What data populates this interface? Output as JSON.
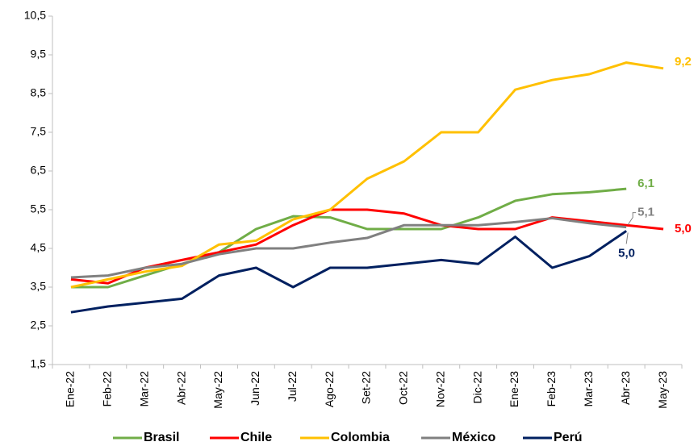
{
  "chart_data": {
    "type": "line",
    "categories": [
      "Ene-22",
      "Feb-22",
      "Mar-22",
      "Abr-22",
      "May-22",
      "Jun-22",
      "Jul-22",
      "Ago-22",
      "Set-22",
      "Oct-22",
      "Nov-22",
      "Dic-22",
      "Ene-23",
      "Feb-23",
      "Mar-23",
      "Abr-23",
      "May-23"
    ],
    "ylim": [
      1.5,
      10.5
    ],
    "yticks": [
      {
        "value": 1.5,
        "label": "1,5"
      },
      {
        "value": 2.5,
        "label": "2,5"
      },
      {
        "value": 3.5,
        "label": "3,5"
      },
      {
        "value": 4.5,
        "label": "4,5"
      },
      {
        "value": 5.5,
        "label": "5,5"
      },
      {
        "value": 6.5,
        "label": "6,5"
      },
      {
        "value": 7.5,
        "label": "7,5"
      },
      {
        "value": 8.5,
        "label": "8,5"
      },
      {
        "value": 9.5,
        "label": "9,5"
      },
      {
        "value": 10.5,
        "label": "10,5"
      }
    ],
    "grid": false,
    "legend": "bottom",
    "series": [
      {
        "name": "Brasil",
        "color": "#70ad47",
        "end_label": "6,1",
        "values": [
          3.5,
          3.5,
          3.8,
          4.1,
          4.4,
          5.0,
          5.33,
          5.3,
          5.0,
          5.0,
          5.0,
          5.3,
          5.73,
          5.9,
          5.95,
          6.04,
          null
        ]
      },
      {
        "name": "Chile",
        "color": "#ff0000",
        "end_label": "5,0",
        "values": [
          3.7,
          3.6,
          4.0,
          4.2,
          4.4,
          4.6,
          5.1,
          5.5,
          5.5,
          5.4,
          5.1,
          5.0,
          5.0,
          5.3,
          5.2,
          5.1,
          5.0
        ]
      },
      {
        "name": "Colombia",
        "color": "#ffc000",
        "end_label": "9,2",
        "values": [
          3.5,
          3.7,
          3.9,
          4.05,
          4.6,
          4.7,
          5.25,
          5.5,
          6.3,
          6.75,
          7.5,
          7.5,
          8.6,
          8.85,
          9.0,
          9.3,
          9.15
        ]
      },
      {
        "name": "México",
        "color": "#808080",
        "end_label": "5,1",
        "values": [
          3.75,
          3.8,
          4.0,
          4.1,
          4.35,
          4.5,
          4.5,
          4.65,
          4.77,
          5.1,
          5.1,
          5.1,
          5.18,
          5.28,
          5.15,
          5.05,
          null
        ]
      },
      {
        "name": "Perú",
        "color": "#002060",
        "end_label": "5,0",
        "values": [
          2.85,
          3.0,
          3.1,
          3.2,
          3.8,
          4.0,
          3.5,
          4.0,
          4.0,
          4.1,
          4.2,
          4.1,
          4.8,
          4.0,
          4.3,
          4.95,
          null
        ]
      }
    ]
  }
}
